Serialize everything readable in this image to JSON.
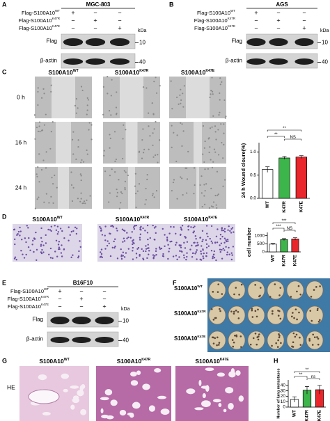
{
  "panels": {
    "a": {
      "label": "A",
      "cell_line": "MGC-803",
      "unit": "kDa",
      "rows": [
        {
          "text": "Flag-S100A10",
          "sup": "WT",
          "signs": [
            "+",
            "−",
            "−"
          ]
        },
        {
          "text": "Flag-S100A10",
          "sup": "K47R",
          "signs": [
            "−",
            "+",
            "−"
          ]
        },
        {
          "text": "Flag-S100A10",
          "sup": "K47E",
          "signs": [
            "−",
            "−",
            "+"
          ]
        }
      ],
      "blots": [
        {
          "name": "Flag",
          "marker": "10"
        },
        {
          "name": "β-actin",
          "marker": "40"
        }
      ]
    },
    "b": {
      "label": "B",
      "cell_line": "AGS",
      "unit": "kDa",
      "rows": [
        {
          "text": "Flag-S100A10",
          "sup": "WT",
          "signs": [
            "+",
            "−",
            "−"
          ]
        },
        {
          "text": "Flag-S100A10",
          "sup": "K47R",
          "signs": [
            "−",
            "+",
            "−"
          ]
        },
        {
          "text": "Flag-S100A10",
          "sup": "K47E",
          "signs": [
            "−",
            "−",
            "+"
          ]
        }
      ],
      "blots": [
        {
          "name": "Flag",
          "marker": "10"
        },
        {
          "name": "β-actin",
          "marker": "40"
        }
      ]
    },
    "c": {
      "label": "C",
      "columns": [
        {
          "text": "S100A10",
          "sup": "WT"
        },
        {
          "text": "S100A10",
          "sup": "K47R"
        },
        {
          "text": "S100A10",
          "sup": "K47E"
        }
      ],
      "rows": [
        "0 h",
        "16 h",
        "24 h"
      ]
    },
    "d": {
      "label": "D",
      "columns": [
        {
          "text": "S100A10",
          "sup": "WT"
        },
        {
          "text": "S100A10",
          "sup": "K47R"
        },
        {
          "text": "S100A10",
          "sup": "K47E"
        }
      ]
    },
    "e": {
      "label": "E",
      "cell_line": "B16F10",
      "unit": "kDa",
      "rows": [
        {
          "text": "Flag-S100A10",
          "sup": "WT",
          "signs": [
            "+",
            "−",
            "−"
          ]
        },
        {
          "text": "Flag-S100A10",
          "sup": "K47R",
          "signs": [
            "−",
            "+",
            "−"
          ]
        },
        {
          "text": "Flag-S100A10",
          "sup": "K47E",
          "signs": [
            "−",
            "−",
            "+"
          ]
        }
      ],
      "blots": [
        {
          "name": "Flag",
          "marker": "10"
        },
        {
          "name": "β-actin",
          "marker": "40"
        }
      ]
    },
    "f": {
      "label": "F",
      "rows": [
        {
          "text": "S100A10",
          "sup": "WT"
        },
        {
          "text": "S100A10",
          "sup": "K47R"
        },
        {
          "text": "S100A10",
          "sup": "K47E"
        }
      ]
    },
    "g": {
      "label": "G",
      "stain": "HE",
      "columns": [
        {
          "text": "S100A10",
          "sup": "WT"
        },
        {
          "text": "S100A10",
          "sup": "K47R"
        },
        {
          "text": "S100A10",
          "sup": "K47E"
        }
      ]
    },
    "h": {
      "label": "H"
    }
  },
  "chart_data": [
    {
      "type": "bar",
      "ylabel": "24 h Wound cloure(%)",
      "categories": [
        "WT",
        "K47R",
        "K47E"
      ],
      "values": [
        0.62,
        0.87,
        0.89
      ],
      "errors": [
        0.06,
        0.03,
        0.03
      ],
      "colors": [
        "#ffffff",
        "#3cb54a",
        "#e8262b"
      ],
      "ylim": [
        0,
        1.2
      ],
      "yticks": [
        {
          "value": 0,
          "label": "0.0"
        },
        {
          "value": 0.5,
          "label": "0.5"
        },
        {
          "value": 1,
          "label": "1.0"
        }
      ],
      "significance": [
        "**",
        "**",
        "NS"
      ]
    },
    {
      "type": "bar",
      "ylabel": "cell number",
      "categories": [
        "WT",
        "K47R",
        "K47E"
      ],
      "values": [
        480,
        760,
        800
      ],
      "errors": [
        40,
        60,
        70
      ],
      "colors": [
        "#ffffff",
        "#3cb54a",
        "#e8262b"
      ],
      "ylim": [
        0,
        1200
      ],
      "yticks": [
        0,
        500,
        1000
      ],
      "significance": [
        "***",
        "***",
        "NS"
      ]
    },
    {
      "type": "bar",
      "ylabel": "Number of lung metastases",
      "categories": [
        "WT",
        "K47R",
        "K47E"
      ],
      "values": [
        14,
        31,
        32
      ],
      "errors": [
        5,
        7,
        8
      ],
      "colors": [
        "#ffffff",
        "#3cb54a",
        "#e8262b"
      ],
      "ylim": [
        0,
        50
      ],
      "yticks": [
        0,
        10,
        20,
        30,
        40
      ],
      "significance": [
        "**",
        "**",
        "ns"
      ]
    }
  ]
}
